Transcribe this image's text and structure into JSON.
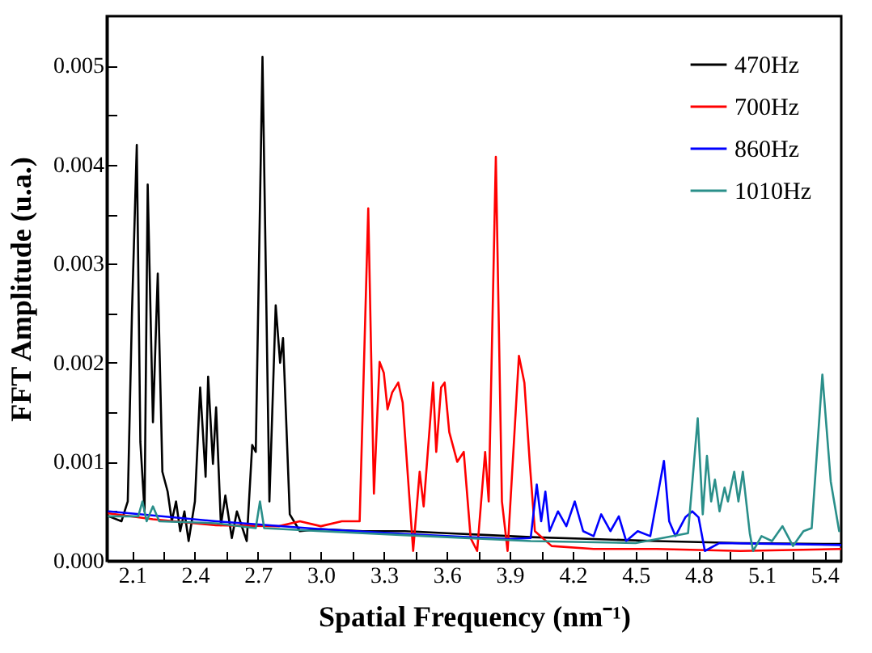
{
  "chart_data": {
    "type": "line",
    "xlabel": "Spatial Frequency (nm⁻¹)",
    "ylabel": "FFT Amplitude (u.a.)",
    "legend": "top right",
    "xlim": [
      1.98,
      5.48
    ],
    "ylim": [
      0,
      0.0055
    ],
    "xticks": [
      2.1,
      {
        "value": 2.25,
        "label": null
      },
      2.4,
      {
        "value": 2.55,
        "label": null
      },
      2.7,
      {
        "value": 2.85,
        "label": null
      },
      {
        "value": 3,
        "label": "3.0"
      },
      {
        "value": 3.15,
        "label": null
      },
      3.3,
      {
        "value": 3.45,
        "label": null
      },
      3.6,
      {
        "value": 3.75,
        "label": null
      },
      3.9,
      {
        "value": 4.05,
        "label": null
      },
      4.2,
      {
        "value": 4.35,
        "label": null
      },
      4.5,
      {
        "value": 4.65,
        "label": null
      },
      4.8,
      {
        "value": 4.95,
        "label": null
      },
      5.1,
      {
        "value": 5.25,
        "label": null
      },
      5.4
    ],
    "yticks": [
      {
        "value": 0,
        "label": "0.000"
      },
      {
        "value": 0.0005,
        "label": null
      },
      {
        "value": 0.001,
        "label": "0.001"
      },
      {
        "value": 0.0015,
        "label": null
      },
      {
        "value": 0.002,
        "label": "0.002"
      },
      {
        "value": 0.0025,
        "label": null
      },
      {
        "value": 0.003,
        "label": "0.003"
      },
      {
        "value": 0.0035,
        "label": null
      },
      {
        "value": 0.004,
        "label": "0.004"
      },
      {
        "value": 0.0045,
        "label": null
      },
      {
        "value": 0.005,
        "label": "0.005"
      }
    ],
    "series": [
      {
        "name": "470Hz",
        "color": "#000000",
        "x": [
          1.99,
          2.05,
          2.08,
          2.1,
          2.123,
          2.14,
          2.16,
          2.175,
          2.2,
          2.223,
          2.245,
          2.27,
          2.29,
          2.31,
          2.33,
          2.35,
          2.37,
          2.4,
          2.425,
          2.451,
          2.463,
          2.486,
          2.501,
          2.524,
          2.545,
          2.576,
          2.6,
          2.647,
          2.673,
          2.69,
          2.722,
          2.755,
          2.785,
          2.806,
          2.82,
          2.852,
          2.9,
          3.0,
          3.2,
          3.4,
          3.6,
          3.8,
          4.0,
          4.3,
          4.6,
          5.0,
          5.48
        ],
        "values": [
          0.00045,
          0.0004,
          0.0006,
          0.0025,
          0.0042,
          0.0012,
          0.0005,
          0.0038,
          0.0014,
          0.0029,
          0.0009,
          0.0007,
          0.0004,
          0.0006,
          0.0003,
          0.0005,
          0.0002,
          0.0006,
          0.00175,
          0.00085,
          0.00186,
          0.00098,
          0.00155,
          0.00036,
          0.00066,
          0.00023,
          0.0005,
          0.0002,
          0.00117,
          0.0011,
          0.00509,
          0.0006,
          0.00258,
          0.002,
          0.00225,
          0.00047,
          0.0003,
          0.00032,
          0.0003,
          0.0003,
          0.00028,
          0.00026,
          0.00024,
          0.00022,
          0.0002,
          0.00018,
          0.00017
        ]
      },
      {
        "name": "700Hz",
        "color": "#ff0000",
        "x": [
          1.99,
          2.2,
          2.5,
          2.8,
          2.9,
          3.0,
          3.1,
          3.185,
          3.226,
          3.253,
          3.28,
          3.3,
          3.318,
          3.34,
          3.369,
          3.39,
          3.44,
          3.471,
          3.49,
          3.535,
          3.55,
          3.573,
          3.59,
          3.612,
          3.65,
          3.681,
          3.714,
          3.745,
          3.783,
          3.8,
          3.834,
          3.863,
          3.89,
          3.944,
          3.97,
          3.996,
          4.02,
          4.1,
          4.3,
          4.6,
          5.0,
          5.48
        ],
        "values": [
          0.00048,
          0.00042,
          0.00036,
          0.00035,
          0.0004,
          0.00035,
          0.0004,
          0.0004,
          0.00356,
          0.00068,
          0.00201,
          0.0019,
          0.00153,
          0.0017,
          0.0018,
          0.0016,
          0.0001,
          0.0009,
          0.00055,
          0.0018,
          0.0011,
          0.00175,
          0.0018,
          0.0013,
          0.001,
          0.0011,
          0.00023,
          0.0001,
          0.0011,
          0.0006,
          0.00408,
          0.0006,
          0.0001,
          0.00207,
          0.0018,
          0.00098,
          0.0003,
          0.00015,
          0.00012,
          0.00012,
          0.0001,
          0.00012
        ]
      },
      {
        "name": "860Hz",
        "color": "#0000ff",
        "x": [
          1.99,
          2.5,
          3.0,
          3.5,
          3.9,
          4.0,
          4.029,
          4.05,
          4.07,
          4.09,
          4.13,
          4.17,
          4.21,
          4.25,
          4.3,
          4.336,
          4.38,
          4.42,
          4.455,
          4.51,
          4.57,
          4.635,
          4.66,
          4.69,
          4.737,
          4.77,
          4.8,
          4.83,
          4.9,
          5.2,
          5.48
        ],
        "values": [
          0.0005,
          0.0004,
          0.00032,
          0.00026,
          0.00022,
          0.00023,
          0.00077,
          0.0004,
          0.0007,
          0.0003,
          0.0005,
          0.00035,
          0.0006,
          0.0003,
          0.00025,
          0.00047,
          0.0003,
          0.00045,
          0.0002,
          0.0003,
          0.00025,
          0.00101,
          0.0004,
          0.00025,
          0.00044,
          0.0005,
          0.00044,
          0.0001,
          0.00018,
          0.00017,
          0.00016
        ]
      },
      {
        "name": "1010Hz",
        "color": "#2a8f8a",
        "x": [
          1.99,
          2.13,
          2.15,
          2.17,
          2.2,
          2.23,
          2.5,
          2.69,
          2.71,
          2.73,
          3.0,
          3.5,
          4.0,
          4.5,
          4.75,
          4.796,
          4.82,
          4.84,
          4.86,
          4.878,
          4.9,
          4.924,
          4.94,
          4.97,
          4.99,
          5.011,
          5.044,
          5.06,
          5.1,
          5.15,
          5.2,
          5.25,
          5.3,
          5.339,
          5.39,
          5.43,
          5.47
        ],
        "values": [
          0.00045,
          0.00045,
          0.0006,
          0.0004,
          0.00055,
          0.0004,
          0.00038,
          0.00033,
          0.0006,
          0.00033,
          0.0003,
          0.00025,
          0.0002,
          0.00018,
          0.00028,
          0.00144,
          0.00047,
          0.00106,
          0.0006,
          0.00082,
          0.0005,
          0.00074,
          0.0006,
          0.0009,
          0.0006,
          0.0009,
          0.00028,
          0.0001,
          0.00025,
          0.0002,
          0.00035,
          0.00015,
          0.0003,
          0.00033,
          0.00188,
          0.0008,
          0.0003
        ]
      }
    ]
  }
}
